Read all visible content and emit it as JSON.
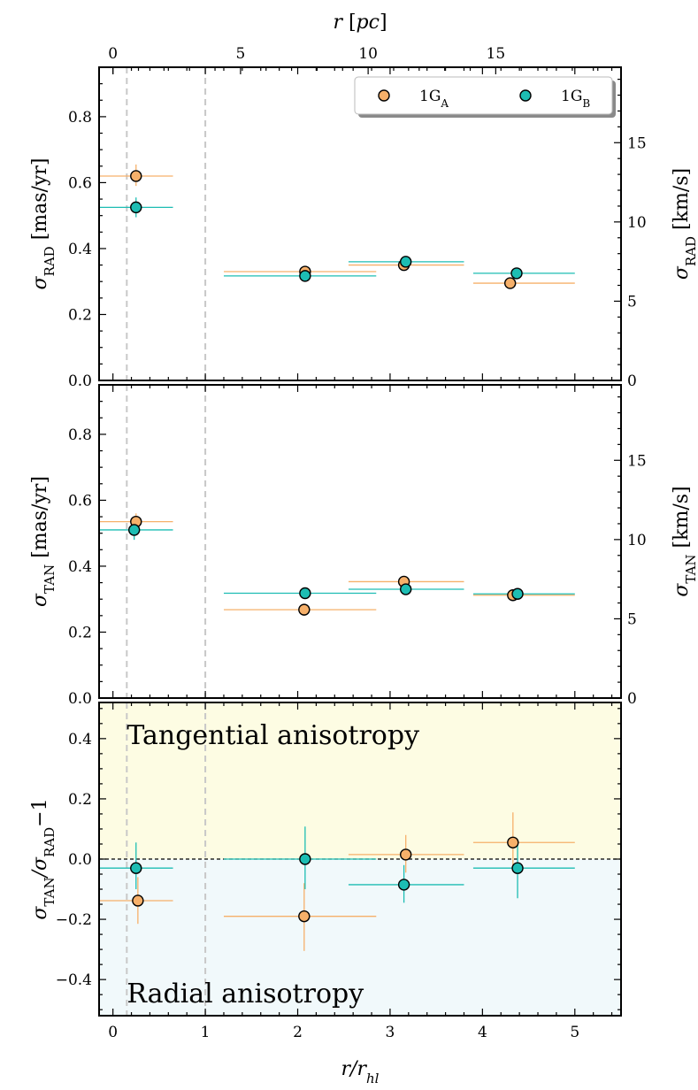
{
  "colors": {
    "1GA": "#f6b06a",
    "1GB": "#1dbdb3",
    "tangential_bg": "#fdfce3",
    "radial_bg": "#f1f9fb",
    "ref_line": "#c8c8c8"
  },
  "chart_data": {
    "type": "scatter",
    "x_label": "r/r",
    "x_label_sub": "hl",
    "x_ticks": [
      "0",
      "1",
      "2",
      "3",
      "4",
      "5"
    ],
    "x_lim": [
      -0.15,
      5.5
    ],
    "top_x_label": "r [pc]",
    "top_x_ticks": [
      "0",
      "5",
      "10",
      "15"
    ],
    "top_x_pc_per_rhl": 3.62,
    "vertical_reference_lines_x": [
      0.15,
      1.0
    ],
    "legend": [
      {
        "label": "1G",
        "sub": "A",
        "color_key": "1GA"
      },
      {
        "label": "1G",
        "sub": "B",
        "color_key": "1GB"
      }
    ],
    "legend_position": "top-right",
    "panels": [
      {
        "id": "rad",
        "y_label": "σ",
        "y_label_sub": "RAD",
        "y_label_unit": " [mas/yr]",
        "y_lim": [
          0,
          0.95
        ],
        "y_ticks": [
          "0.0",
          "0.2",
          "0.4",
          "0.6",
          "0.8"
        ],
        "right_y_label": "σ",
        "right_y_label_sub": "RAD",
        "right_y_label_unit": " [km/s]",
        "right_y_ticks": [
          "0",
          "5",
          "10",
          "15"
        ],
        "kms_per_masyr": 20.8,
        "series": [
          {
            "name": "1GA",
            "color_key": "1GA",
            "points": [
              {
                "x": 0.25,
                "y": 0.62,
                "xlo": -0.15,
                "xhi": 0.65,
                "ylo": 0.59,
                "yhi": 0.655
              },
              {
                "x": 2.08,
                "y": 0.33,
                "xlo": 1.2,
                "xhi": 2.85,
                "ylo": 0.315,
                "yhi": 0.345
              },
              {
                "x": 3.15,
                "y": 0.35,
                "xlo": 2.55,
                "xhi": 3.8,
                "ylo": 0.335,
                "yhi": 0.365
              },
              {
                "x": 4.3,
                "y": 0.295,
                "xlo": 3.9,
                "xhi": 5.0,
                "ylo": 0.28,
                "yhi": 0.31
              }
            ]
          },
          {
            "name": "1GB",
            "color_key": "1GB",
            "points": [
              {
                "x": 0.25,
                "y": 0.525,
                "xlo": -0.15,
                "xhi": 0.65,
                "ylo": 0.495,
                "yhi": 0.555
              },
              {
                "x": 2.08,
                "y": 0.317,
                "xlo": 1.2,
                "xhi": 2.85,
                "ylo": 0.303,
                "yhi": 0.331
              },
              {
                "x": 3.17,
                "y": 0.36,
                "xlo": 2.55,
                "xhi": 3.8,
                "ylo": 0.345,
                "yhi": 0.375
              },
              {
                "x": 4.37,
                "y": 0.325,
                "xlo": 3.9,
                "xhi": 5.0,
                "ylo": 0.31,
                "yhi": 0.34
              }
            ]
          }
        ]
      },
      {
        "id": "tan",
        "y_label": "σ",
        "y_label_sub": "TAN",
        "y_label_unit": " [mas/yr]",
        "y_lim": [
          0,
          0.95
        ],
        "y_ticks": [
          "0.0",
          "0.2",
          "0.4",
          "0.6",
          "0.8"
        ],
        "right_y_label": "σ",
        "right_y_label_sub": "TAN",
        "right_y_label_unit": " [km/s]",
        "right_y_ticks": [
          "0",
          "5",
          "10",
          "15"
        ],
        "kms_per_masyr": 20.8,
        "series": [
          {
            "name": "1GA",
            "color_key": "1GA",
            "points": [
              {
                "x": 0.25,
                "y": 0.535,
                "xlo": -0.15,
                "xhi": 0.65,
                "ylo": 0.51,
                "yhi": 0.56
              },
              {
                "x": 2.07,
                "y": 0.268,
                "xlo": 1.2,
                "xhi": 2.85,
                "ylo": 0.25,
                "yhi": 0.286
              },
              {
                "x": 3.15,
                "y": 0.353,
                "xlo": 2.55,
                "xhi": 3.8,
                "ylo": 0.335,
                "yhi": 0.37
              },
              {
                "x": 4.33,
                "y": 0.312,
                "xlo": 3.9,
                "xhi": 5.0,
                "ylo": 0.298,
                "yhi": 0.326
              }
            ]
          },
          {
            "name": "1GB",
            "color_key": "1GB",
            "points": [
              {
                "x": 0.23,
                "y": 0.51,
                "xlo": -0.15,
                "xhi": 0.65,
                "ylo": 0.48,
                "yhi": 0.54
              },
              {
                "x": 2.08,
                "y": 0.318,
                "xlo": 1.2,
                "xhi": 2.85,
                "ylo": 0.302,
                "yhi": 0.334
              },
              {
                "x": 3.17,
                "y": 0.33,
                "xlo": 2.55,
                "xhi": 3.8,
                "ylo": 0.315,
                "yhi": 0.345
              },
              {
                "x": 4.38,
                "y": 0.316,
                "xlo": 3.9,
                "xhi": 5.0,
                "ylo": 0.302,
                "yhi": 0.33
              }
            ]
          }
        ]
      },
      {
        "id": "ratio",
        "y_label": "σ",
        "y_label_sub": "TAN",
        "y_label_mid": "/σ",
        "y_label_sub2": "RAD",
        "y_label_tail": "−1",
        "y_lim": [
          -0.52,
          0.52
        ],
        "y_ticks": [
          "−0.4",
          "−0.2",
          "0.0",
          "0.2",
          "0.4"
        ],
        "tangential_text": "Tangential anisotropy",
        "radial_text": "Radial anisotropy",
        "zero_line": 0,
        "series": [
          {
            "name": "1GA",
            "color_key": "1GA",
            "points": [
              {
                "x": 0.27,
                "y": -0.138,
                "xlo": -0.15,
                "xhi": 0.65,
                "ylo": -0.215,
                "yhi": -0.06
              },
              {
                "x": 2.07,
                "y": -0.19,
                "xlo": 1.2,
                "xhi": 2.85,
                "ylo": -0.305,
                "yhi": -0.08
              },
              {
                "x": 3.17,
                "y": 0.015,
                "xlo": 2.55,
                "xhi": 3.8,
                "ylo": -0.045,
                "yhi": 0.08
              },
              {
                "x": 4.33,
                "y": 0.055,
                "xlo": 3.9,
                "xhi": 5.0,
                "ylo": -0.04,
                "yhi": 0.155
              }
            ]
          },
          {
            "name": "1GB",
            "color_key": "1GB",
            "points": [
              {
                "x": 0.25,
                "y": -0.03,
                "xlo": -0.15,
                "xhi": 0.65,
                "ylo": -0.1,
                "yhi": 0.055
              },
              {
                "x": 2.08,
                "y": 0.0,
                "xlo": 1.2,
                "xhi": 2.85,
                "ylo": -0.1,
                "yhi": 0.108
              },
              {
                "x": 3.15,
                "y": -0.085,
                "xlo": 2.55,
                "xhi": 3.8,
                "ylo": -0.145,
                "yhi": -0.02
              },
              {
                "x": 4.38,
                "y": -0.03,
                "xlo": 3.9,
                "xhi": 5.0,
                "ylo": -0.13,
                "yhi": 0.06
              }
            ]
          }
        ]
      }
    ]
  }
}
